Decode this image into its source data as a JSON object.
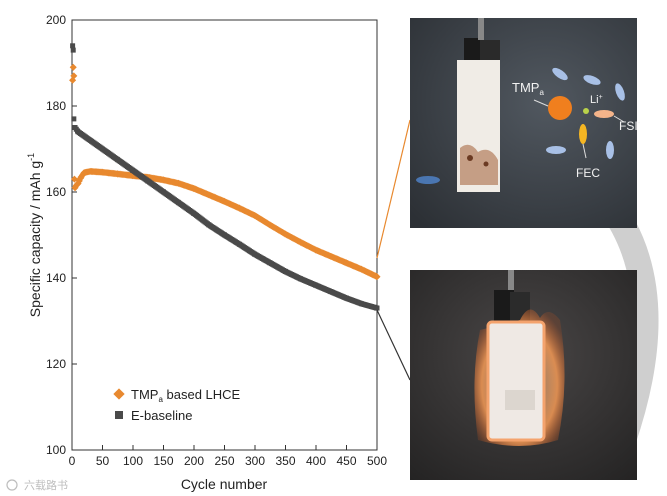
{
  "chart_data": {
    "type": "scatter",
    "xlabel": "Cycle number",
    "ylabel": "Specific capacity / mAh g",
    "ylabel_sup": "-1",
    "xlim": [
      0,
      500
    ],
    "ylim": [
      100,
      200
    ],
    "xticks": [
      "0",
      "50",
      "100",
      "150",
      "200",
      "250",
      "300",
      "350",
      "400",
      "450",
      "500"
    ],
    "yticks": [
      "100",
      "120",
      "140",
      "160",
      "180",
      "200"
    ],
    "grid": false,
    "legend_position": "bottom-left",
    "series": [
      {
        "name_main": "TMP",
        "name_sub": "a",
        "name_rest": " based LHCE",
        "color": "#e8892f",
        "marker": "diamond",
        "points": [
          [
            1,
            186
          ],
          [
            2,
            189
          ],
          [
            3,
            187
          ],
          [
            4,
            163
          ],
          [
            5,
            161
          ],
          [
            7,
            161.5
          ],
          [
            10,
            162
          ],
          [
            15,
            163.5
          ],
          [
            20,
            164.5
          ],
          [
            30,
            164.8
          ],
          [
            50,
            164.6
          ],
          [
            75,
            164.2
          ],
          [
            100,
            163.8
          ],
          [
            125,
            163.4
          ],
          [
            150,
            162.8
          ],
          [
            175,
            162
          ],
          [
            200,
            160.8
          ],
          [
            225,
            159.3
          ],
          [
            250,
            157.8
          ],
          [
            275,
            156.2
          ],
          [
            300,
            154.5
          ],
          [
            325,
            152.3
          ],
          [
            350,
            150.2
          ],
          [
            375,
            148.3
          ],
          [
            400,
            146.5
          ],
          [
            425,
            145
          ],
          [
            450,
            143.5
          ],
          [
            475,
            142
          ],
          [
            500,
            140.3
          ]
        ]
      },
      {
        "name": "E-baseline",
        "color": "#4a4a4a",
        "marker": "square",
        "points": [
          [
            1,
            194
          ],
          [
            2,
            193
          ],
          [
            3,
            177
          ],
          [
            5,
            175
          ],
          [
            10,
            174
          ],
          [
            20,
            173
          ],
          [
            30,
            172
          ],
          [
            50,
            170
          ],
          [
            75,
            167.5
          ],
          [
            100,
            165
          ],
          [
            125,
            162.5
          ],
          [
            150,
            160
          ],
          [
            175,
            157.5
          ],
          [
            200,
            155
          ],
          [
            225,
            152.3
          ],
          [
            250,
            150
          ],
          [
            275,
            147.8
          ],
          [
            300,
            145.5
          ],
          [
            325,
            143.5
          ],
          [
            350,
            141.5
          ],
          [
            375,
            139.8
          ],
          [
            400,
            138.3
          ],
          [
            425,
            136.8
          ],
          [
            450,
            135.3
          ],
          [
            475,
            134
          ],
          [
            500,
            133
          ]
        ]
      }
    ]
  },
  "photos": {
    "top": {
      "labels": {
        "tmp_main": "TMP",
        "tmp_sub": "a",
        "li_main": "Li",
        "li_sup": "+",
        "fsi_main": "FSI",
        "fsi_sup": "-",
        "fec": "FEC"
      },
      "colors": {
        "tmp_ball": "#f07f1e",
        "fsi": "#a8c0e6",
        "fec": "#f5b623",
        "li": "#b9d24a"
      }
    },
    "bottom": {
      "flame_color": "#f59a55"
    }
  },
  "watermark": "六载路书"
}
